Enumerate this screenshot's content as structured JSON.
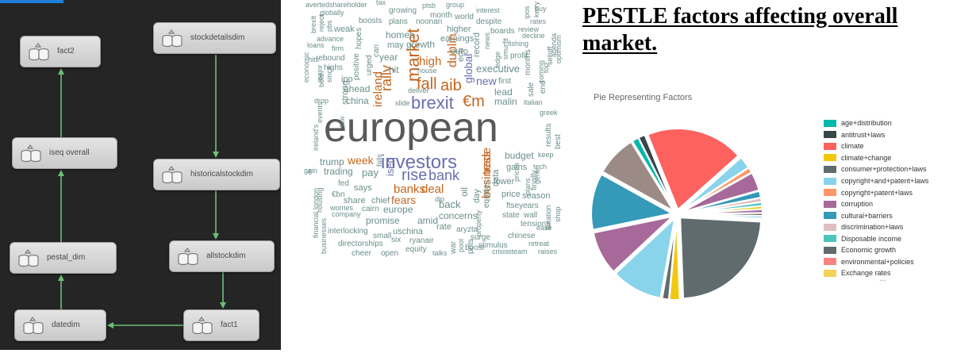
{
  "colors": {
    "diagram_bg": "#252526",
    "diagram_edge": "#6dbf76",
    "diagram_node": "#d9d9d9"
  },
  "diagram": {
    "nodes": [
      {
        "id": "fact2",
        "label": "fact2",
        "icon": "dataset-icon"
      },
      {
        "id": "stockdetailsdim",
        "label": "stockdetailsdim",
        "icon": "dataset-icon"
      },
      {
        "id": "iseq-overall",
        "label": "iseq overall",
        "icon": "dataset-icon"
      },
      {
        "id": "historicalstockdim",
        "label": "historicalstockdim",
        "icon": "dataset-icon"
      },
      {
        "id": "pestal-dim",
        "label": "pestal_dim",
        "icon": "dataset-icon"
      },
      {
        "id": "allstockdim",
        "label": "allstockdim",
        "icon": "dataset-icon"
      },
      {
        "id": "datedim",
        "label": "datedim",
        "icon": "dataset-icon"
      },
      {
        "id": "fact1",
        "label": "fact1",
        "icon": "dataset-icon"
      }
    ],
    "edges": [
      {
        "from": "stockdetailsdim",
        "to": "historicalstockdim"
      },
      {
        "from": "historicalstockdim",
        "to": "allstockdim"
      },
      {
        "from": "allstockdim",
        "to": "fact1"
      },
      {
        "from": "fact1",
        "to": "datedim"
      },
      {
        "from": "datedim",
        "to": "pestal-dim"
      },
      {
        "from": "pestal-dim",
        "to": "iseq-overall"
      },
      {
        "from": "iseq-overall",
        "to": "fact2"
      }
    ]
  },
  "wordcloud": {
    "words": [
      {
        "t": "european",
        "c": "#58595b"
      },
      {
        "t": "investors",
        "c": "#6b6eb0"
      },
      {
        "t": "brexit",
        "c": "#6b6eb0"
      },
      {
        "t": "rise",
        "c": "#6b6eb0"
      },
      {
        "t": "bank",
        "c": "#6b6eb0"
      },
      {
        "t": "fall",
        "c": "#c4661f"
      },
      {
        "t": "market",
        "c": "#c4661f"
      },
      {
        "t": "aib",
        "c": "#c4661f"
      },
      {
        "t": "€m",
        "c": "#c4661f"
      },
      {
        "t": "rally",
        "c": "#c4661f"
      },
      {
        "t": "high",
        "c": "#c4661f"
      },
      {
        "t": "dublin",
        "c": "#c4661f"
      },
      {
        "t": "banks",
        "c": "#c4661f"
      },
      {
        "t": "deal",
        "c": "#c4661f"
      },
      {
        "t": "business",
        "c": "#c4661f"
      },
      {
        "t": "trade",
        "c": "#c4661f"
      },
      {
        "t": "week",
        "c": "#c4661f"
      },
      {
        "t": "fears",
        "c": "#c4661f"
      },
      {
        "t": "ireland",
        "c": "#c4661f"
      },
      {
        "t": "iseq",
        "c": "#6b6eb0"
      },
      {
        "t": "global",
        "c": "#6b6eb0"
      },
      {
        "t": "new",
        "c": "#6b6eb0"
      },
      {
        "t": "executive",
        "c": "#6a8e8a"
      },
      {
        "t": "lead",
        "c": "#6a8e8a"
      },
      {
        "t": "malin",
        "c": "#6a8e8a"
      },
      {
        "t": "growth",
        "c": "#6a8e8a"
      },
      {
        "t": "year",
        "c": "#6a8e8a"
      },
      {
        "t": "ahead",
        "c": "#6a8e8a"
      },
      {
        "t": "china",
        "c": "#6a8e8a"
      },
      {
        "t": "ipo",
        "c": "#6a8e8a"
      },
      {
        "t": "hit",
        "c": "#6a8e8a"
      },
      {
        "t": "earnings",
        "c": "#6a8e8a"
      },
      {
        "t": "higher",
        "c": "#6a8e8a"
      },
      {
        "t": "euro",
        "c": "#6a8e8a"
      },
      {
        "t": "homes",
        "c": "#6a8e8a"
      },
      {
        "t": "may",
        "c": "#6a8e8a"
      },
      {
        "t": "boosts",
        "c": "#6a8e8a"
      },
      {
        "t": "pay",
        "c": "#6a8e8a"
      },
      {
        "t": "trading",
        "c": "#6a8e8a"
      },
      {
        "t": "trump",
        "c": "#6a8e8a"
      },
      {
        "t": "says",
        "c": "#6a8e8a"
      },
      {
        "t": "share",
        "c": "#6a8e8a"
      },
      {
        "t": "chief",
        "c": "#6a8e8a"
      },
      {
        "t": "europe",
        "c": "#6a8e8a"
      },
      {
        "t": "promise",
        "c": "#6a8e8a"
      },
      {
        "t": "back",
        "c": "#6a8e8a"
      },
      {
        "t": "concerns",
        "c": "#6a8e8a"
      },
      {
        "t": "rate",
        "c": "#6a8e8a"
      },
      {
        "t": "amid",
        "c": "#6a8e8a"
      },
      {
        "t": "uschina",
        "c": "#6a8e8a"
      },
      {
        "t": "ryanair",
        "c": "#6a8e8a"
      },
      {
        "t": "budget",
        "c": "#6a8e8a"
      },
      {
        "t": "gains",
        "c": "#6a8e8a"
      },
      {
        "t": "lower",
        "c": "#6a8e8a"
      },
      {
        "t": "price",
        "c": "#6a8e8a"
      },
      {
        "t": "season",
        "c": "#6a8e8a"
      },
      {
        "t": "ftseyears",
        "c": "#6a8e8a"
      },
      {
        "t": "state",
        "c": "#6a8e8a"
      },
      {
        "t": "wall",
        "c": "#6a8e8a"
      },
      {
        "t": "tensions",
        "c": "#6a8e8a"
      },
      {
        "t": "surge",
        "c": "#6a8e8a"
      },
      {
        "t": "chinese",
        "c": "#6a8e8a"
      },
      {
        "t": "aryzta",
        "c": "#6a8e8a"
      },
      {
        "t": "stimulus",
        "c": "#6a8e8a"
      },
      {
        "t": "boost",
        "c": "#6a8e8a"
      },
      {
        "t": "crisis",
        "c": "#6a8e8a"
      },
      {
        "t": "steam",
        "c": "#6a8e8a"
      },
      {
        "t": "raises",
        "c": "#6a8e8a"
      },
      {
        "t": "retreat",
        "c": "#6a8e8a"
      },
      {
        "t": "ease",
        "c": "#6a8e8a"
      },
      {
        "t": "directorships",
        "c": "#6a8e8a"
      },
      {
        "t": "interlocking",
        "c": "#6a8e8a"
      },
      {
        "t": "small",
        "c": "#6a8e8a"
      },
      {
        "t": "six",
        "c": "#6a8e8a"
      },
      {
        "t": "equity",
        "c": "#6a8e8a"
      },
      {
        "t": "cheer",
        "c": "#6a8e8a"
      },
      {
        "t": "open",
        "c": "#6a8e8a"
      },
      {
        "t": "talks",
        "c": "#6a8e8a"
      },
      {
        "t": "company",
        "c": "#6a8e8a"
      },
      {
        "t": "worries",
        "c": "#6a8e8a"
      },
      {
        "t": "cairn",
        "c": "#6a8e8a"
      },
      {
        "t": "fed",
        "c": "#6a8e8a"
      },
      {
        "t": "€bn",
        "c": "#6a8e8a"
      },
      {
        "t": "gain",
        "c": "#6a8e8a"
      },
      {
        "t": "housing",
        "c": "#6a8e8a"
      },
      {
        "t": "london",
        "c": "#6a8e8a"
      },
      {
        "t": "financial",
        "c": "#6a8e8a"
      },
      {
        "t": "businesses",
        "c": "#6a8e8a"
      },
      {
        "t": "ireland's",
        "c": "#6a8e8a"
      },
      {
        "t": "events",
        "c": "#6a8e8a"
      },
      {
        "t": "low",
        "c": "#6a8e8a"
      },
      {
        "t": "avertedshareholder",
        "c": "#6a8e8a"
      },
      {
        "t": "tax",
        "c": "#6a8e8a"
      },
      {
        "t": "growing",
        "c": "#6a8e8a"
      },
      {
        "t": "ptsb",
        "c": "#6a8e8a"
      },
      {
        "t": "group",
        "c": "#6a8e8a"
      },
      {
        "t": "interest",
        "c": "#6a8e8a"
      },
      {
        "t": "buy",
        "c": "#6a8e8a"
      },
      {
        "t": "globally",
        "c": "#6a8e8a"
      },
      {
        "t": "plans",
        "c": "#6a8e8a"
      },
      {
        "t": "noonan",
        "c": "#6a8e8a"
      },
      {
        "t": "month",
        "c": "#6a8e8a"
      },
      {
        "t": "world",
        "c": "#6a8e8a"
      },
      {
        "t": "despite",
        "c": "#6a8e8a"
      },
      {
        "t": "rates",
        "c": "#6a8e8a"
      },
      {
        "t": "weak",
        "c": "#6a8e8a"
      },
      {
        "t": "boards",
        "c": "#6a8e8a"
      },
      {
        "t": "review",
        "c": "#6a8e8a"
      },
      {
        "t": "decline",
        "c": "#6a8e8a"
      },
      {
        "t": "advance",
        "c": "#6a8e8a"
      },
      {
        "t": "loans",
        "c": "#6a8e8a"
      },
      {
        "t": "firm",
        "c": "#6a8e8a"
      },
      {
        "t": "rebound",
        "c": "#6a8e8a"
      },
      {
        "t": "highs",
        "c": "#6a8e8a"
      },
      {
        "t": "fishing",
        "c": "#6a8e8a"
      },
      {
        "t": "profit",
        "c": "#6a8e8a"
      },
      {
        "t": "house",
        "c": "#6a8e8a"
      },
      {
        "t": "deliver",
        "c": "#6a8e8a"
      },
      {
        "t": "slide",
        "c": "#6a8e8a"
      },
      {
        "t": "first",
        "c": "#6a8e8a"
      },
      {
        "t": "italian",
        "c": "#6a8e8a"
      },
      {
        "t": "greek",
        "c": "#6a8e8a"
      },
      {
        "t": "keep",
        "c": "#6a8e8a"
      },
      {
        "t": "tech",
        "c": "#6a8e8a"
      },
      {
        "t": "drop",
        "c": "#6a8e8a"
      },
      {
        "t": "ecb",
        "c": "#6a8e8a"
      },
      {
        "t": "record",
        "c": "#6a8e8a"
      },
      {
        "t": "strong",
        "c": "#6a8e8a"
      },
      {
        "t": "positive",
        "c": "#6a8e8a"
      },
      {
        "t": "economic",
        "c": "#6a8e8a"
      },
      {
        "t": "major",
        "c": "#6a8e8a"
      },
      {
        "t": "urged",
        "c": "#6a8e8a"
      },
      {
        "t": "hopes",
        "c": "#6a8e8a"
      },
      {
        "t": "can",
        "c": "#6a8e8a"
      },
      {
        "t": "equities",
        "c": "#6a8e8a"
      },
      {
        "t": "data",
        "c": "#6a8e8a"
      },
      {
        "t": "oil",
        "c": "#6a8e8a"
      },
      {
        "t": "day",
        "c": "#6a8e8a"
      },
      {
        "t": "results",
        "c": "#6a8e8a"
      },
      {
        "t": "best",
        "c": "#6a8e8a"
      },
      {
        "t": "sale",
        "c": "#6a8e8a"
      },
      {
        "t": "months",
        "c": "#6a8e8a"
      },
      {
        "t": "top",
        "c": "#6a8e8a"
      },
      {
        "t": "end",
        "c": "#6a8e8a"
      },
      {
        "t": "optimism",
        "c": "#6a8e8a"
      },
      {
        "t": "agenda",
        "c": "#6a8e8a"
      },
      {
        "t": "selloff",
        "c": "#6a8e8a"
      },
      {
        "t": "coming",
        "c": "#6a8e8a"
      },
      {
        "t": "edge",
        "c": "#6a8e8a"
      },
      {
        "t": "smurfit",
        "c": "#6a8e8a"
      },
      {
        "t": "news",
        "c": "#6a8e8a"
      },
      {
        "t": "ipos",
        "c": "#6a8e8a"
      },
      {
        "t": "kerry",
        "c": "#6a8e8a"
      },
      {
        "t": "shop",
        "c": "#6a8e8a"
      },
      {
        "t": "flotation",
        "c": "#6a8e8a"
      },
      {
        "t": "finally",
        "c": "#6a8e8a"
      },
      {
        "t": "plans",
        "c": "#6a8e8a"
      },
      {
        "t": "gene",
        "c": "#6a8e8a"
      },
      {
        "t": "prices",
        "c": "#6a8e8a"
      },
      {
        "t": "war",
        "c": "#6a8e8a"
      },
      {
        "t": "pool",
        "c": "#6a8e8a"
      },
      {
        "t": "puts",
        "c": "#6a8e8a"
      },
      {
        "t": "property",
        "c": "#6a8e8a"
      },
      {
        "t": "dip",
        "c": "#6a8e8a"
      },
      {
        "t": "falls",
        "c": "#6a8e8a"
      },
      {
        "t": "brexit",
        "c": "#6a8e8a"
      },
      {
        "t": "reject",
        "c": "#6a8e8a"
      },
      {
        "t": "pbs",
        "c": "#6a8e8a"
      },
      {
        "t": "bold",
        "c": "#6a8e8a"
      },
      {
        "t": "since",
        "c": "#6a8e8a"
      },
      {
        "t": "hits",
        "c": "#6a8e8a"
      },
      {
        "t": "€",
        "c": "#6a8e8a"
      }
    ]
  },
  "title": "PESTLE factors affecting overall market.",
  "chart_data": {
    "type": "pie",
    "title": "Pie Representing Factors",
    "legend_position": "right",
    "legend": [
      {
        "name": "age+distribution",
        "color": "#01b8aa"
      },
      {
        "name": "antitrust+laws",
        "color": "#374649"
      },
      {
        "name": "climate",
        "color": "#fd625e"
      },
      {
        "name": "climate+change",
        "color": "#f2c80f"
      },
      {
        "name": "consumer+protection+laws",
        "color": "#5f6b6d"
      },
      {
        "name": "copyright+and+patent+laws",
        "color": "#8ad4eb"
      },
      {
        "name": "copyright+patent+laws",
        "color": "#fe9666"
      },
      {
        "name": "corruption",
        "color": "#a66999"
      },
      {
        "name": "cultural+barriers",
        "color": "#3599b8"
      },
      {
        "name": "discrimination+laws",
        "color": "#dfbfbf"
      },
      {
        "name": "Disposable income",
        "color": "#4ac5bb"
      },
      {
        "name": "Economic growth",
        "color": "#5f6b6d"
      },
      {
        "name": "environmental+policies",
        "color": "#fb8281"
      },
      {
        "name": "Exchange rates",
        "color": "#f4d25a"
      }
    ],
    "legend_more": "...",
    "slices": [
      {
        "color": "#01b8aa",
        "value": 1.3
      },
      {
        "color": "#374649",
        "value": 1.3
      },
      {
        "color": "#fd625e",
        "value": 19
      },
      {
        "color": "#8ad4eb",
        "value": 2.4
      },
      {
        "color": "#fe9666",
        "value": 1.0
      },
      {
        "color": "#a66999",
        "value": 3.6
      },
      {
        "color": "#3599b8",
        "value": 1.3
      },
      {
        "color": "#dfbfbf",
        "value": 0.8
      },
      {
        "color": "#4ac5bb",
        "value": 0.7
      },
      {
        "color": "#f2c80f",
        "value": 0.6
      },
      {
        "color": "#a66999",
        "value": 0.7
      },
      {
        "color": "#374649",
        "value": 0.5
      },
      {
        "color": "#8ad4eb",
        "value": 0.5
      },
      {
        "color": "#5f6b6d",
        "value": 23
      },
      {
        "color": "#f2c80f",
        "value": 2.0
      },
      {
        "color": "#5f6b6d",
        "value": 1.3
      },
      {
        "color": "#8ad4eb",
        "value": 10
      },
      {
        "color": "#a66999",
        "value": 8.5
      },
      {
        "color": "#3599b8",
        "value": 11
      },
      {
        "color": "#9b8a85",
        "value": 8
      }
    ]
  }
}
